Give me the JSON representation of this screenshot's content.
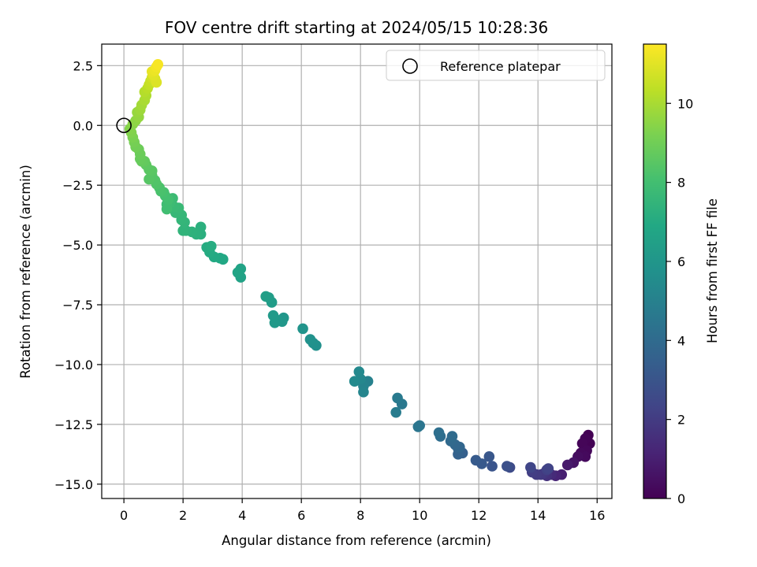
{
  "chart_data": {
    "type": "scatter",
    "title": "FOV centre drift starting at 2024/05/15 10:28:36",
    "xlabel": "Angular distance from reference (arcmin)",
    "ylabel": "Rotation from reference (arcmin)",
    "xlim": [
      -0.75,
      16.5
    ],
    "ylim": [
      -15.6,
      3.4
    ],
    "xticks": [
      0,
      2,
      4,
      6,
      8,
      10,
      12,
      14,
      16
    ],
    "yticks": [
      2.5,
      0.0,
      -2.5,
      -5.0,
      -7.5,
      -10.0,
      -12.5,
      -15.0
    ],
    "xtick_labels": [
      "0",
      "2",
      "4",
      "6",
      "8",
      "10",
      "12",
      "14",
      "16"
    ],
    "ytick_labels": [
      "2.5",
      "0.0",
      "−2.5",
      "−5.0",
      "−7.5",
      "−10.0",
      "−12.5",
      "−15.0"
    ],
    "grid": true,
    "legend": {
      "position": "top-right",
      "entries": [
        "Reference platepar"
      ]
    },
    "reference_point": {
      "x": 0,
      "y": 0
    },
    "colorbar": {
      "label": "Hours from first FF file",
      "colormap": "viridis",
      "range": [
        0,
        11.5
      ],
      "ticks": [
        0,
        2,
        4,
        6,
        8,
        10
      ],
      "tick_labels": [
        "0",
        "2",
        "4",
        "6",
        "8",
        "10"
      ]
    },
    "points": [
      [
        15.7,
        -12.95,
        0.0
      ],
      [
        15.75,
        -13.3,
        0.05
      ],
      [
        15.6,
        -13.1,
        0.1
      ],
      [
        15.5,
        -13.3,
        0.15
      ],
      [
        15.65,
        -13.6,
        0.2
      ],
      [
        15.45,
        -13.7,
        0.25
      ],
      [
        15.6,
        -13.85,
        0.3
      ],
      [
        15.35,
        -13.85,
        0.4
      ],
      [
        15.2,
        -14.1,
        0.6
      ],
      [
        15.0,
        -14.2,
        0.8
      ],
      [
        14.8,
        -14.6,
        1.0
      ],
      [
        14.6,
        -14.65,
        1.2
      ],
      [
        14.45,
        -14.6,
        1.4
      ],
      [
        14.3,
        -14.65,
        1.6
      ],
      [
        14.2,
        -14.55,
        1.8
      ],
      [
        14.1,
        -14.6,
        1.9
      ],
      [
        13.95,
        -14.6,
        2.0
      ],
      [
        13.8,
        -14.5,
        2.1
      ],
      [
        14.3,
        -14.4,
        2.2
      ],
      [
        14.35,
        -14.35,
        2.3
      ],
      [
        13.75,
        -14.3,
        2.4
      ],
      [
        13.05,
        -14.3,
        2.6
      ],
      [
        12.95,
        -14.25,
        2.8
      ],
      [
        12.45,
        -14.25,
        3.0
      ],
      [
        12.35,
        -13.85,
        3.1
      ],
      [
        12.1,
        -14.15,
        3.2
      ],
      [
        11.9,
        -14.0,
        3.3
      ],
      [
        11.45,
        -13.7,
        3.5
      ],
      [
        11.3,
        -13.75,
        3.6
      ],
      [
        11.3,
        -13.5,
        3.7
      ],
      [
        11.35,
        -13.45,
        3.75
      ],
      [
        11.2,
        -13.35,
        3.8
      ],
      [
        11.05,
        -13.2,
        3.9
      ],
      [
        11.1,
        -13.0,
        4.0
      ],
      [
        10.7,
        -13.0,
        4.1
      ],
      [
        10.65,
        -12.85,
        4.2
      ],
      [
        10.0,
        -12.55,
        4.4
      ],
      [
        9.95,
        -12.6,
        4.45
      ],
      [
        9.4,
        -11.65,
        4.6
      ],
      [
        9.25,
        -11.4,
        4.7
      ],
      [
        9.2,
        -12.0,
        4.8
      ],
      [
        8.25,
        -10.7,
        5.0
      ],
      [
        8.1,
        -10.9,
        5.1
      ],
      [
        8.1,
        -11.15,
        5.2
      ],
      [
        8.0,
        -10.6,
        5.3
      ],
      [
        7.95,
        -10.3,
        5.4
      ],
      [
        7.8,
        -10.7,
        5.45
      ],
      [
        6.5,
        -9.2,
        5.7
      ],
      [
        6.4,
        -9.1,
        5.75
      ],
      [
        6.3,
        -8.95,
        5.8
      ],
      [
        6.05,
        -8.5,
        5.9
      ],
      [
        5.4,
        -8.05,
        6.0
      ],
      [
        5.35,
        -8.2,
        6.05
      ],
      [
        5.2,
        -8.15,
        6.1
      ],
      [
        5.1,
        -8.25,
        6.15
      ],
      [
        5.05,
        -7.95,
        6.2
      ],
      [
        5.0,
        -7.4,
        6.3
      ],
      [
        4.9,
        -7.2,
        6.35
      ],
      [
        4.8,
        -7.15,
        6.4
      ],
      [
        3.95,
        -6.35,
        6.6
      ],
      [
        3.95,
        -6.0,
        6.65
      ],
      [
        3.85,
        -6.15,
        6.7
      ],
      [
        3.35,
        -5.6,
        6.85
      ],
      [
        3.25,
        -5.55,
        6.9
      ],
      [
        3.05,
        -5.5,
        6.95
      ],
      [
        2.9,
        -5.3,
        7.0
      ],
      [
        2.8,
        -5.1,
        7.05
      ],
      [
        2.95,
        -5.05,
        7.1
      ],
      [
        2.6,
        -4.55,
        7.2
      ],
      [
        2.6,
        -4.25,
        7.25
      ],
      [
        2.45,
        -4.55,
        7.3
      ],
      [
        2.3,
        -4.45,
        7.35
      ],
      [
        2.1,
        -4.4,
        7.4
      ],
      [
        2.0,
        -4.4,
        7.45
      ],
      [
        2.05,
        -4.05,
        7.5
      ],
      [
        1.95,
        -3.95,
        7.55
      ],
      [
        1.95,
        -3.75,
        7.6
      ],
      [
        1.75,
        -3.65,
        7.65
      ],
      [
        1.85,
        -3.45,
        7.7
      ],
      [
        1.7,
        -3.4,
        7.75
      ],
      [
        1.65,
        -3.05,
        7.8
      ],
      [
        1.55,
        -3.25,
        7.85
      ],
      [
        1.45,
        -3.3,
        7.9
      ],
      [
        1.45,
        -3.5,
        7.95
      ],
      [
        1.5,
        -3.1,
        8.0
      ],
      [
        1.4,
        -2.95,
        8.05
      ],
      [
        1.35,
        -2.8,
        8.1
      ],
      [
        1.25,
        -2.75,
        8.15
      ],
      [
        1.2,
        -2.6,
        8.2
      ],
      [
        1.1,
        -2.45,
        8.3
      ],
      [
        1.05,
        -2.3,
        8.35
      ],
      [
        0.95,
        -2.1,
        8.4
      ],
      [
        0.85,
        -2.25,
        8.45
      ],
      [
        0.95,
        -1.9,
        8.5
      ],
      [
        0.85,
        -1.85,
        8.55
      ],
      [
        0.75,
        -1.65,
        8.6
      ],
      [
        0.7,
        -1.5,
        8.7
      ],
      [
        0.6,
        -1.5,
        8.75
      ],
      [
        0.55,
        -1.4,
        8.8
      ],
      [
        0.55,
        -1.2,
        8.85
      ],
      [
        0.5,
        -1.0,
        8.9
      ],
      [
        0.4,
        -0.9,
        9.0
      ],
      [
        0.35,
        -0.7,
        9.1
      ],
      [
        0.3,
        -0.5,
        9.2
      ],
      [
        0.25,
        -0.3,
        9.3
      ],
      [
        0.2,
        -0.15,
        9.35
      ],
      [
        0.3,
        0.05,
        9.45
      ],
      [
        0.4,
        0.2,
        9.55
      ],
      [
        0.5,
        0.35,
        9.65
      ],
      [
        0.45,
        0.55,
        9.7
      ],
      [
        0.55,
        0.65,
        9.8
      ],
      [
        0.6,
        0.85,
        9.9
      ],
      [
        0.7,
        1.05,
        10.0
      ],
      [
        0.75,
        1.25,
        10.1
      ],
      [
        0.7,
        1.4,
        10.2
      ],
      [
        0.8,
        1.55,
        10.3
      ],
      [
        0.85,
        1.7,
        10.45
      ],
      [
        0.9,
        1.85,
        10.55
      ],
      [
        0.95,
        2.0,
        10.7
      ],
      [
        1.05,
        1.95,
        10.8
      ],
      [
        1.1,
        1.8,
        10.9
      ],
      [
        1.0,
        2.1,
        11.0
      ],
      [
        0.95,
        2.25,
        11.1
      ],
      [
        1.05,
        2.3,
        11.2
      ],
      [
        1.1,
        2.45,
        11.3
      ],
      [
        1.15,
        2.55,
        11.4
      ]
    ]
  }
}
